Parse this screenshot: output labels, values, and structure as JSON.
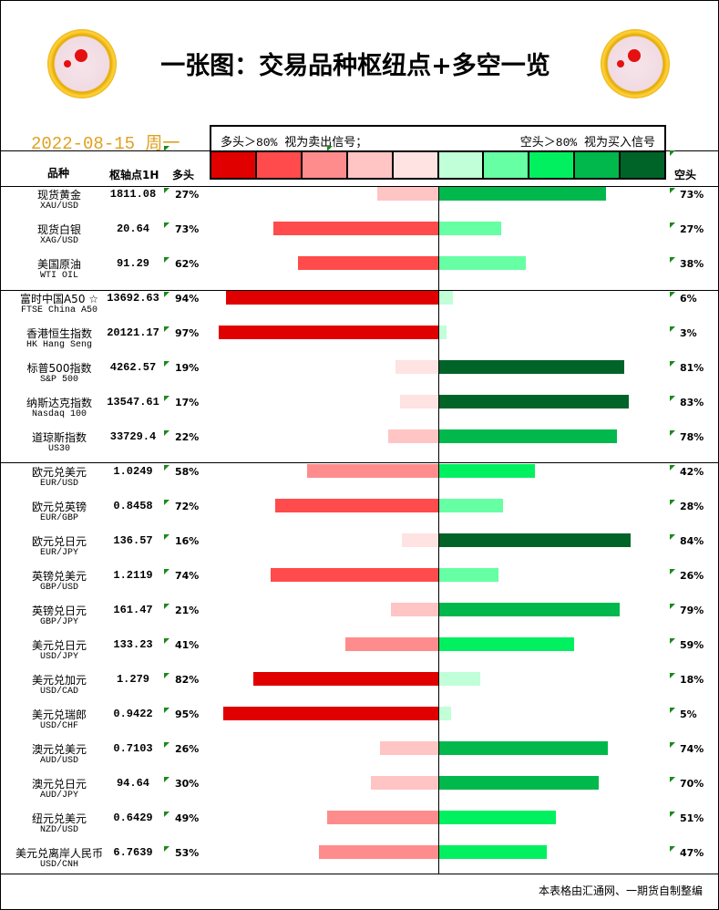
{
  "header": {
    "title": "一张图：交易品种枢纽点+多空一览",
    "date": "2022-08-15 周一"
  },
  "legend": {
    "long_note": "多头＞80% 视为卖出信号；",
    "short_note": "空头＞80% 视为买入信号",
    "red_scale": [
      "#e00000",
      "#ff4b4b",
      "#ff8c8c",
      "#ffc4c4",
      "#ffe2e2"
    ],
    "green_scale": [
      "#c0ffd8",
      "#66ffa4",
      "#00f060",
      "#00b84c",
      "#006428"
    ]
  },
  "columns": {
    "name": "品种",
    "pivot": "枢轴点1H",
    "long": "多头",
    "short": "空头"
  },
  "rows": [
    {
      "name": "现货黄金",
      "code": "XAU/USD",
      "pivot": "1811.08",
      "long": 27,
      "short": 73
    },
    {
      "name": "现货白银",
      "code": "XAG/USD",
      "pivot": "20.64",
      "long": 73,
      "short": 27
    },
    {
      "name": "美国原油",
      "code": "WTI OIL",
      "pivot": "91.29",
      "long": 62,
      "short": 38
    },
    {
      "name": "富时中国A50 ☆",
      "code": "FTSE China A50",
      "pivot": "13692.63",
      "long": 94,
      "short": 6
    },
    {
      "name": "香港恒生指数",
      "code": "HK Hang Seng",
      "pivot": "20121.17",
      "long": 97,
      "short": 3
    },
    {
      "name": "标普500指数",
      "code": "S&P 500",
      "pivot": "4262.57",
      "long": 19,
      "short": 81
    },
    {
      "name": "纳斯达克指数",
      "code": "Nasdaq 100",
      "pivot": "13547.61",
      "long": 17,
      "short": 83
    },
    {
      "name": "道琼斯指数",
      "code": "US30",
      "pivot": "33729.4",
      "long": 22,
      "short": 78
    },
    {
      "name": "欧元兑美元",
      "code": "EUR/USD",
      "pivot": "1.0249",
      "long": 58,
      "short": 42
    },
    {
      "name": "欧元兑英镑",
      "code": "EUR/GBP",
      "pivot": "0.8458",
      "long": 72,
      "short": 28
    },
    {
      "name": "欧元兑日元",
      "code": "EUR/JPY",
      "pivot": "136.57",
      "long": 16,
      "short": 84
    },
    {
      "name": "英镑兑美元",
      "code": "GBP/USD",
      "pivot": "1.2119",
      "long": 74,
      "short": 26
    },
    {
      "name": "英镑兑日元",
      "code": "GBP/JPY",
      "pivot": "161.47",
      "long": 21,
      "short": 79
    },
    {
      "name": "美元兑日元",
      "code": "USD/JPY",
      "pivot": "133.23",
      "long": 41,
      "short": 59
    },
    {
      "name": "美元兑加元",
      "code": "USD/CAD",
      "pivot": "1.279",
      "long": 82,
      "short": 18
    },
    {
      "name": "美元兑瑞郎",
      "code": "USD/CHF",
      "pivot": "0.9422",
      "long": 95,
      "short": 5
    },
    {
      "name": "澳元兑美元",
      "code": "AUD/USD",
      "pivot": "0.7103",
      "long": 26,
      "short": 74
    },
    {
      "name": "澳元兑日元",
      "code": "AUD/JPY",
      "pivot": "94.64",
      "long": 30,
      "short": 70
    },
    {
      "name": "纽元兑美元",
      "code": "NZD/USD",
      "pivot": "0.6429",
      "long": 49,
      "short": 51
    },
    {
      "name": "美元兑离岸人民币",
      "code": "USD/CNH",
      "pivot": "6.7639",
      "long": 53,
      "short": 47
    }
  ],
  "footer": "本表格由汇通网、一期货自制整编"
}
